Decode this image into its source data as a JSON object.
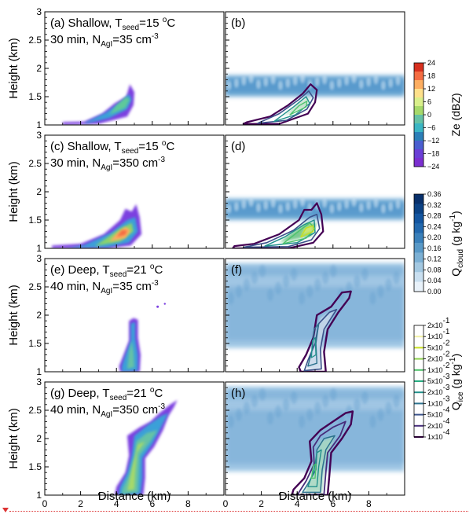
{
  "chart_data": {
    "type": "heatmap",
    "x_ticks": [
      "0",
      "2",
      "4",
      "6",
      "8"
    ],
    "y_ticks": [
      "1",
      "1.5",
      "2",
      "2.5",
      "3"
    ],
    "xlim": [
      0,
      10
    ],
    "ylim": [
      1,
      3
    ],
    "xlabel": "Distance (km)",
    "ylabel": "Height (km)",
    "panels": [
      {
        "id": "a",
        "row": 0,
        "col": 0,
        "field": "Ze",
        "lines": [
          "(a) Shallow, T_seed=15 °C",
          "30 min, N_AgI=35 cm⁻³"
        ]
      },
      {
        "id": "b",
        "row": 0,
        "col": 1,
        "field": "Qcloud+Qice",
        "lines": [
          "(b)"
        ]
      },
      {
        "id": "c",
        "row": 1,
        "col": 0,
        "field": "Ze",
        "lines": [
          "(c) Shallow, T_seed=15 °C",
          "30 min, N_AgI=350 cm⁻³"
        ]
      },
      {
        "id": "d",
        "row": 1,
        "col": 1,
        "field": "Qcloud+Qice",
        "lines": [
          "(d)"
        ]
      },
      {
        "id": "e",
        "row": 2,
        "col": 0,
        "field": "Ze",
        "lines": [
          "(e) Deep, T_seed=21 °C",
          "40 min, N_AgI=35 cm⁻³"
        ]
      },
      {
        "id": "f",
        "row": 2,
        "col": 1,
        "field": "Qcloud+Qice",
        "lines": [
          "(f)"
        ]
      },
      {
        "id": "g",
        "row": 3,
        "col": 0,
        "field": "Ze",
        "lines": [
          "(g) Deep, T_seed=21 °C",
          "40 min, N_AgI=350 cm⁻³"
        ]
      },
      {
        "id": "h",
        "row": 3,
        "col": 1,
        "field": "Qcloud+Qice",
        "lines": [
          "(h)"
        ]
      }
    ],
    "panel_labels": {
      "a": {
        "id": "(a)",
        "text1": "Shallow, T",
        "sub1": "seed",
        "text2": "=15 ",
        "sup2": "o",
        "text3": "C",
        "line2a": "30 min, N",
        "line2sub": "AgI",
        "line2b": "=35 cm",
        "line2sup": "-3"
      },
      "b": {
        "id": "(b)"
      },
      "c": {
        "id": "(c)",
        "text1": "Shallow, T",
        "sub1": "seed",
        "text2": "=15 ",
        "sup2": "o",
        "text3": "C",
        "line2a": "30 min, N",
        "line2sub": "AgI",
        "line2b": "=350 cm",
        "line2sup": "-3"
      },
      "d": {
        "id": "(d)"
      },
      "e": {
        "id": "(e)",
        "text1": "Deep, T",
        "sub1": "seed",
        "text2": "=21 ",
        "sup2": "o",
        "text3": "C",
        "line2a": "40 min, N",
        "line2sub": "AgI",
        "line2b": "=35 cm",
        "line2sup": "-3"
      },
      "f": {
        "id": "(f)"
      },
      "g": {
        "id": "(g)",
        "text1": "Deep, T",
        "sub1": "seed",
        "text2": "=21 ",
        "sup2": "o",
        "text3": "C",
        "line2a": "40 min, N",
        "line2sub": "AgI",
        "line2b": "=350 cm",
        "line2sup": "-3"
      },
      "h": {
        "id": "(h)"
      }
    },
    "colorbars": [
      {
        "id": "ze",
        "title": "Ze (dBZ)",
        "ticks": [
          "24",
          "18",
          "12",
          "6",
          "0",
          "−6",
          "−12",
          "−18",
          "−24"
        ],
        "colors": [
          "#d7301f",
          "#f46d43",
          "#fdae61",
          "#fee08b",
          "#d9ef8b",
          "#a6d96a",
          "#66c2a5",
          "#3bb6c4",
          "#2c7fb8",
          "#4a5fd0",
          "#6a3fd6",
          "#7b2fd0"
        ]
      },
      {
        "id": "qcloud",
        "title_main": "Q",
        "title_sub": "cloud",
        "title_units": " (g kg",
        "title_sup": "-1",
        "title_end": ")",
        "ticks": [
          "0.36",
          "0.32",
          "0.28",
          "0.24",
          "0.20",
          "0.16",
          "0.12",
          "0.08",
          "0.04",
          "0.00"
        ],
        "colors": [
          "#08306b",
          "#0b4285",
          "#1355a0",
          "#2268ad",
          "#3a80ba",
          "#5999c7",
          "#7cb0d4",
          "#a3c8e1",
          "#c9dff0",
          "#e9f2fa"
        ]
      },
      {
        "id": "qice",
        "title_main": "Q",
        "title_sub": "ice",
        "title_units": " (g kg",
        "title_sup": "-1",
        "title_end": ")",
        "ticks": [
          [
            "2x10",
            "-1"
          ],
          [
            "1x10",
            "-1"
          ],
          [
            "5x10",
            "-2"
          ],
          [
            "2x10",
            "-2"
          ],
          [
            "1x10",
            "-2"
          ],
          [
            "5x10",
            "-3"
          ],
          [
            "2x10",
            "-3"
          ],
          [
            "1x10",
            "-3"
          ],
          [
            "5x10",
            "-4"
          ],
          [
            "2x10",
            "-4"
          ],
          [
            "1x10",
            "-4"
          ]
        ],
        "colors": [
          "#f2f0a3",
          "#c8e020",
          "#8fd14f",
          "#4ec36b",
          "#27ad81",
          "#21918c",
          "#2c728e",
          "#3b528b",
          "#472d7b",
          "#440154"
        ]
      }
    ]
  }
}
